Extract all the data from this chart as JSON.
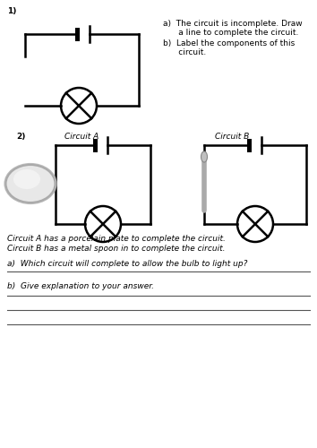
{
  "background_color": "#ffffff",
  "title_num1": "1)",
  "title_num2": "2)",
  "circuit_a_label": "Circuit A",
  "circuit_b_label": "Circuit B",
  "question_a1": "a)  The circuit is incomplete. Draw",
  "question_a2": "      a line to complete the circuit.",
  "question_b1": "b)  Label the components of this",
  "question_b2": "      circuit.",
  "desc1": "Circuit A has a porcelain plate to complete the circuit.",
  "desc2": "Circuit B has a metal spoon in to complete the circuit.",
  "q_a": "a)  Which circuit will complete to allow the bulb to light up?",
  "q_b": "b)  Give explanation to your answer.",
  "lw": 1.8,
  "fs_main": 7.5,
  "fs_label": 6.5,
  "fs_italic": 7.0
}
